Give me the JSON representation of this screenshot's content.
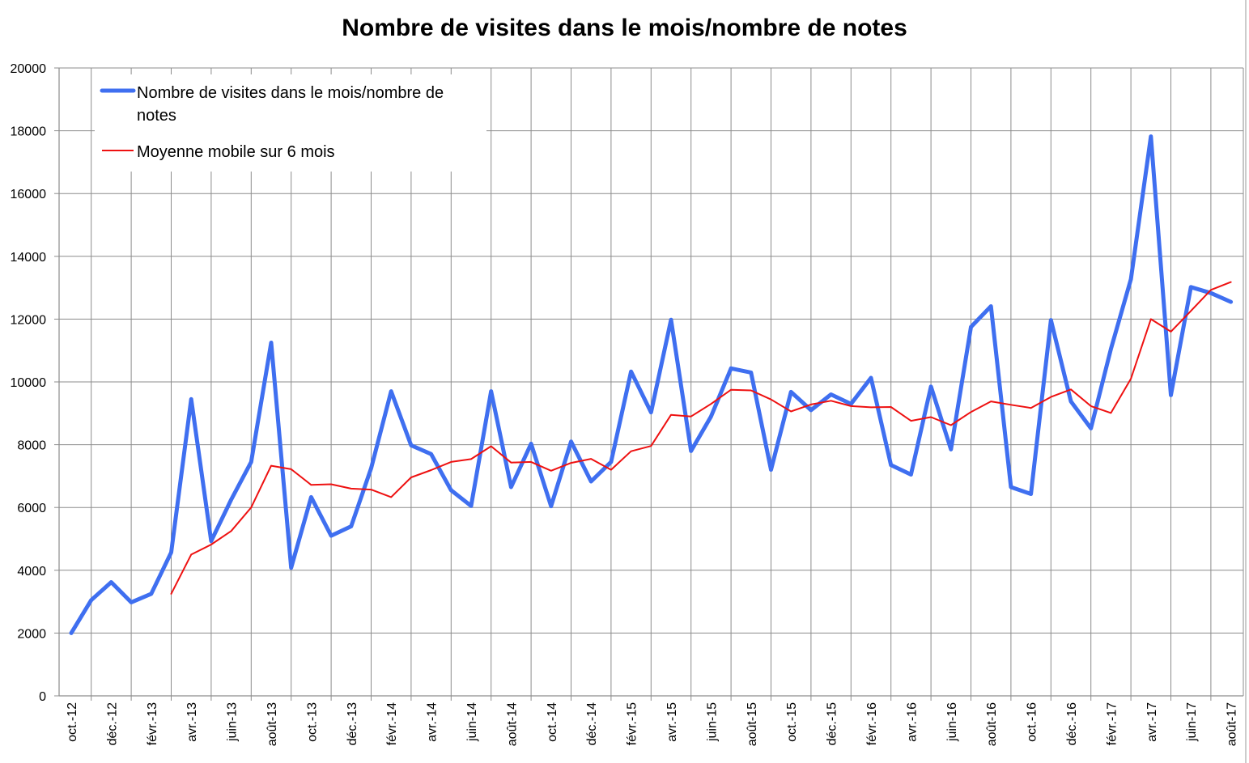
{
  "chart_data": {
    "type": "line",
    "title": "Nombre de visites dans le mois/nombre de notes",
    "xlabel": "",
    "ylabel": "",
    "ylim": [
      0,
      20000
    ],
    "y_ticks": [
      0,
      2000,
      4000,
      6000,
      8000,
      10000,
      12000,
      14000,
      16000,
      18000,
      20000
    ],
    "grid": true,
    "legend_position": "top-left",
    "x_tick_labels": [
      "oct.-12",
      "déc.-12",
      "févr.-13",
      "avr.-13",
      "juin-13",
      "août-13",
      "oct.-13",
      "déc.-13",
      "févr.-14",
      "avr.-14",
      "juin-14",
      "août-14",
      "oct.-14",
      "déc.-14",
      "févr.-15",
      "avr.-15",
      "juin-15",
      "août-15",
      "oct.-15",
      "déc.-15",
      "févr.-16",
      "avr.-16",
      "juin-16",
      "août-16",
      "oct.-16",
      "déc.-16",
      "févr.-17",
      "avr.-17",
      "juin-17",
      "août-17"
    ],
    "months": [
      "oct.-12",
      "nov.-12",
      "déc.-12",
      "janv.-13",
      "févr.-13",
      "mars-13",
      "avr.-13",
      "mai-13",
      "juin-13",
      "juil.-13",
      "août-13",
      "sept.-13",
      "oct.-13",
      "nov.-13",
      "déc.-13",
      "janv.-14",
      "févr.-14",
      "mars-14",
      "avr.-14",
      "mai-14",
      "juin-14",
      "juil.-14",
      "août-14",
      "sept.-14",
      "oct.-14",
      "nov.-14",
      "déc.-14",
      "janv.-15",
      "févr.-15",
      "mars-15",
      "avr.-15",
      "mai-15",
      "juin-15",
      "juil.-15",
      "août-15",
      "sept.-15",
      "oct.-15",
      "nov.-15",
      "déc.-15",
      "janv.-16",
      "févr.-16",
      "mars-16",
      "avr.-16",
      "mai-16",
      "juin-16",
      "juil.-16",
      "août-16",
      "sept.-16",
      "oct.-16",
      "nov.-16",
      "déc.-16",
      "janv.-17",
      "févr.-17",
      "mars-17",
      "avr.-17",
      "mai-17",
      "juin-17",
      "juil.-17",
      "août-17"
    ],
    "series": [
      {
        "name": "Nombre de visites dans le mois/nombre de notes",
        "color": "#3f6ff0",
        "values": [
          2000,
          3050,
          3620,
          2980,
          3250,
          4570,
          9450,
          4930,
          6250,
          7450,
          11250,
          4080,
          6330,
          5100,
          5400,
          7250,
          9700,
          7980,
          7700,
          6550,
          6050,
          9700,
          6650,
          8030,
          6040,
          8100,
          6830,
          7450,
          10330,
          9030,
          11980,
          7800,
          8900,
          10430,
          10300,
          7200,
          9680,
          9100,
          9600,
          9300,
          10130,
          7350,
          7050,
          9850,
          7850,
          11750,
          12410,
          6650,
          6430,
          11970,
          9380,
          8520,
          11050,
          13270,
          17820,
          9580,
          13020,
          12830,
          12550
        ]
      },
      {
        "name": "Moyenne mobile sur 6 mois",
        "color": "#ee1111",
        "values": [
          null,
          null,
          null,
          null,
          null,
          3250,
          4500,
          4820,
          5250,
          6000,
          7330,
          7220,
          6720,
          6740,
          6600,
          6570,
          6330,
          6960,
          7190,
          7450,
          7540,
          7950,
          7430,
          7450,
          7170,
          7420,
          7550,
          7200,
          7790,
          7960,
          8950,
          8900,
          9300,
          9750,
          9730,
          9440,
          9060,
          9280,
          9400,
          9230,
          9190,
          9200,
          8760,
          8880,
          8620,
          9040,
          9380,
          9270,
          9170,
          9520,
          9760,
          9230,
          9010,
          10100,
          12000,
          11600,
          12260,
          12930,
          13180
        ]
      }
    ]
  }
}
